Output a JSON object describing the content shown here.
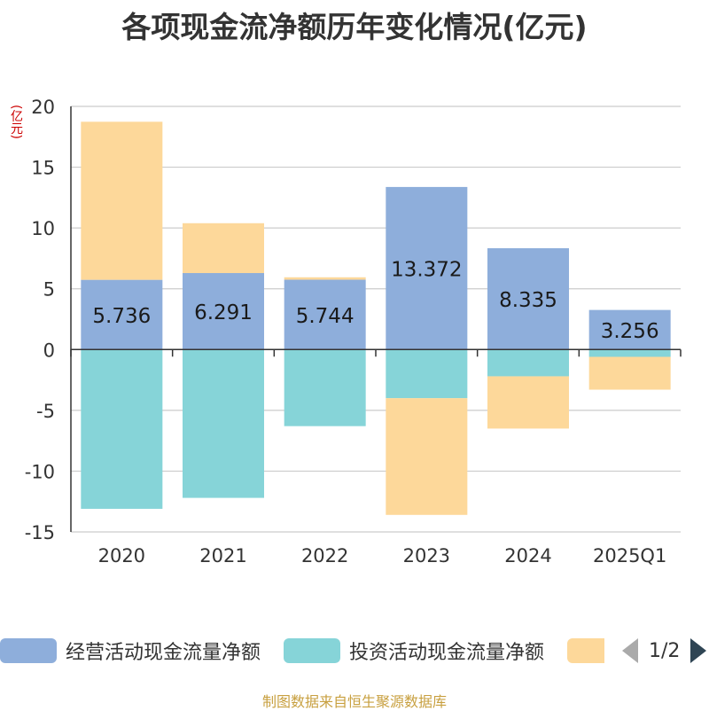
{
  "title": "各项现金流净额历年变化情况(亿元)",
  "unit_label": "(亿元)",
  "footer": "制图数据来自恒生聚源数据库",
  "legend": {
    "items": [
      {
        "label": "经营活动现金流量净额",
        "color": "#8eaedb"
      },
      {
        "label": "投资活动现金流量净额",
        "color": "#86d4d8"
      },
      {
        "label": "",
        "color": "#fdd89a"
      }
    ],
    "page": "1/2"
  },
  "chart_data": {
    "type": "bar",
    "stacked": true,
    "categories": [
      "2020",
      "2021",
      "2022",
      "2023",
      "2024",
      "2025Q1"
    ],
    "ylim": [
      -15,
      20
    ],
    "yticks": [
      20,
      15,
      10,
      5,
      0,
      -5,
      -10,
      -15
    ],
    "grid": true,
    "legend_position": "bottom",
    "series": [
      {
        "name": "经营活动现金流量净额",
        "color": "#8eaedb",
        "values": [
          5.736,
          6.291,
          5.744,
          13.372,
          8.335,
          3.256
        ],
        "labels": [
          "5.736",
          "6.291",
          "5.744",
          "13.372",
          "8.335",
          "3.256"
        ]
      },
      {
        "name": "投资活动现金流量净额",
        "color": "#86d4d8",
        "values": [
          -13.1,
          -12.2,
          -6.3,
          -4.0,
          -2.2,
          -0.6
        ]
      },
      {
        "name": "",
        "color": "#fdd89a",
        "values": [
          13.0,
          4.1,
          0.2,
          -9.6,
          -4.3,
          -2.7
        ]
      }
    ]
  }
}
